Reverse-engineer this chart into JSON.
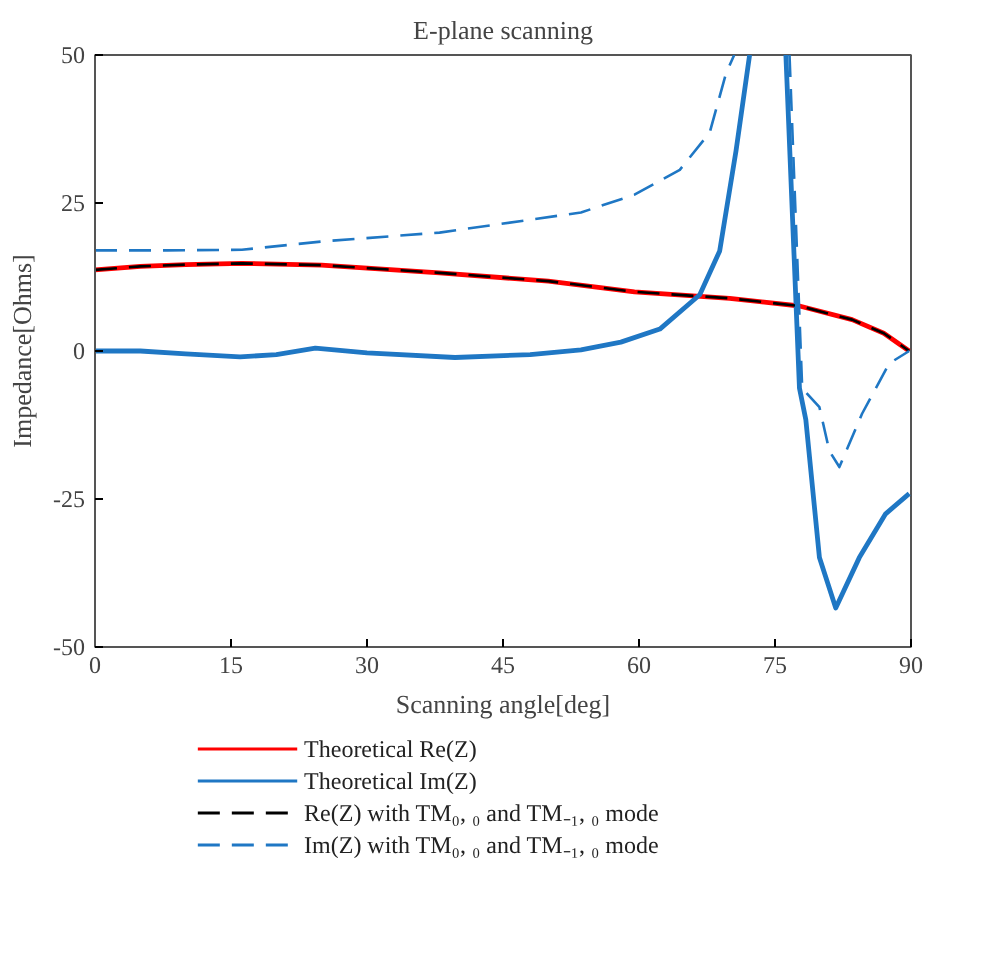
{
  "chart_data": {
    "type": "line",
    "title": "E-plane scanning",
    "xlabel": "Scanning angle[deg]",
    "ylabel": "Impedance[Ohms]",
    "xlim": [
      0,
      90
    ],
    "ylim": [
      -50,
      50
    ],
    "xticks": [
      0,
      15,
      30,
      45,
      60,
      75,
      90
    ],
    "yticks": [
      -50,
      -25,
      0,
      25,
      50
    ],
    "grid": false,
    "legend": "bottom",
    "series": [
      {
        "name": "Theoretical Re(Z)",
        "color": "#ff0000",
        "line_style": "solid",
        "x": [
          0,
          5,
          10,
          16.2,
          25,
          38,
          50,
          59.5,
          70,
          77.7,
          83.5,
          87,
          89.8
        ],
        "values": [
          13.7,
          14.3,
          14.6,
          14.8,
          14.5,
          13.2,
          11.8,
          10.0,
          8.9,
          7.6,
          5.3,
          3.0,
          0
        ]
      },
      {
        "name": "Theoretical Im(Z)",
        "color": "#1f77c4",
        "line_style": "solid",
        "x": [
          0,
          5,
          10,
          16,
          20,
          24.3,
          30,
          39.7,
          48,
          53.6,
          58,
          62.3,
          66.7,
          68.9,
          70.7,
          72.2,
          null,
          76.2,
          77.7,
          78.4,
          79.9,
          81.7,
          84.3,
          87.2,
          89.8
        ],
        "values": [
          0,
          0,
          -0.5,
          -1,
          -0.6,
          0.5,
          -0.3,
          -1.1,
          -0.6,
          0.2,
          1.5,
          3.7,
          9.5,
          16.9,
          33.8,
          50,
          null,
          50,
          -6.3,
          -11.6,
          -34.9,
          -43.4,
          -34.9,
          -27.5,
          -24.1
        ]
      },
      {
        "name": "Re(Z) with TM₀, ₀ and TM₋₁, ₀ mode",
        "color": "#000000",
        "line_style": "dashed",
        "x": [
          0,
          5,
          10,
          16.2,
          25,
          38,
          50,
          59.5,
          70,
          77.7,
          83.5,
          87,
          89.8
        ],
        "values": [
          13.7,
          14.3,
          14.6,
          14.8,
          14.5,
          13.2,
          11.8,
          10.0,
          8.9,
          7.6,
          5.3,
          3.0,
          0
        ]
      },
      {
        "name": "Im(Z) with TM₀, ₀ and TM₋₁, ₀ mode",
        "color": "#1f77c4",
        "line_style": "dashed",
        "x": [
          0,
          8,
          16.2,
          25,
          38,
          53.6,
          59.5,
          64.5,
          67.8,
          69.6,
          70.5,
          null,
          76.6,
          78,
          79.9,
          81,
          82.1,
          84.6,
          87.6,
          89.8
        ],
        "values": [
          17,
          17,
          17.1,
          18.5,
          20,
          23.4,
          26.4,
          30.6,
          36.9,
          46.9,
          50,
          null,
          50,
          -6.3,
          -9.5,
          -16.9,
          -19.6,
          -10.6,
          -2.1,
          0
        ]
      }
    ]
  }
}
